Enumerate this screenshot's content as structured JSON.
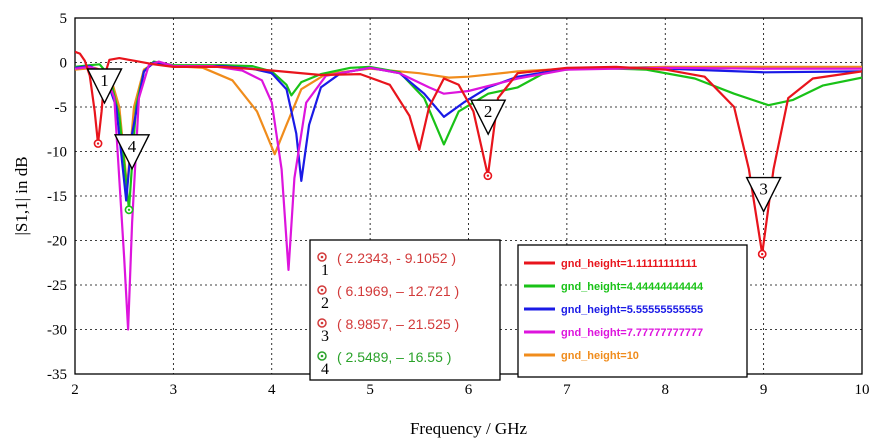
{
  "chart_data": {
    "type": "line",
    "title": "",
    "xlabel": "Frequency / GHz",
    "ylabel": "|S1,1| in dB",
    "xlim": [
      2,
      10
    ],
    "ylim": [
      -35,
      5
    ],
    "x_ticks": [
      "2",
      "3",
      "4",
      "5",
      "6",
      "7",
      "8",
      "9",
      "10"
    ],
    "y_ticks": [
      "5",
      "0",
      "-5",
      "-10",
      "-15",
      "-20",
      "-25",
      "-30",
      "-35"
    ],
    "grid": true,
    "legend_position": "bottom-right",
    "series": [
      {
        "name": "gnd_height=1.11111111111",
        "color": "#e8141c",
        "points": [
          [
            2,
            1.2
          ],
          [
            2.05,
            1.0
          ],
          [
            2.1,
            0.2
          ],
          [
            2.15,
            -1.5
          ],
          [
            2.2,
            -5.5
          ],
          [
            2.2343,
            -9.1
          ],
          [
            2.27,
            -5.5
          ],
          [
            2.3,
            -1.5
          ],
          [
            2.35,
            0.3
          ],
          [
            2.45,
            0.5
          ],
          [
            2.6,
            0.2
          ],
          [
            2.8,
            -0.2
          ],
          [
            3.0,
            -0.5
          ],
          [
            3.5,
            -0.5
          ],
          [
            4.0,
            -0.9
          ],
          [
            4.5,
            -1.4
          ],
          [
            4.9,
            -1.3
          ],
          [
            5.2,
            -2.5
          ],
          [
            5.4,
            -6.0
          ],
          [
            5.5,
            -9.8
          ],
          [
            5.6,
            -5.0
          ],
          [
            5.75,
            -1.8
          ],
          [
            5.9,
            -2.5
          ],
          [
            6.05,
            -5.5
          ],
          [
            6.1969,
            -12.7
          ],
          [
            6.3,
            -4.0
          ],
          [
            6.5,
            -1.2
          ],
          [
            7.0,
            -0.6
          ],
          [
            7.5,
            -0.5
          ],
          [
            8.0,
            -0.8
          ],
          [
            8.4,
            -1.6
          ],
          [
            8.7,
            -5.0
          ],
          [
            8.85,
            -12.0
          ],
          [
            8.9857,
            -21.5
          ],
          [
            9.1,
            -12.0
          ],
          [
            9.25,
            -4.0
          ],
          [
            9.5,
            -1.8
          ],
          [
            10.0,
            -1.0
          ]
        ]
      },
      {
        "name": "gnd_height=4.44444444444",
        "color": "#19c217",
        "points": [
          [
            2,
            -0.5
          ],
          [
            2.15,
            -0.3
          ],
          [
            2.25,
            -0.2
          ],
          [
            2.35,
            -1.5
          ],
          [
            2.45,
            -6.0
          ],
          [
            2.5489,
            -16.5
          ],
          [
            2.62,
            -5.0
          ],
          [
            2.7,
            -1.0
          ],
          [
            2.8,
            0.1
          ],
          [
            3.0,
            -0.3
          ],
          [
            3.5,
            -0.3
          ],
          [
            3.8,
            -0.4
          ],
          [
            4.0,
            -1.0
          ],
          [
            4.15,
            -2.5
          ],
          [
            4.2,
            -3.7
          ],
          [
            4.3,
            -2.2
          ],
          [
            4.5,
            -1.3
          ],
          [
            4.8,
            -0.6
          ],
          [
            5.0,
            -0.5
          ],
          [
            5.3,
            -1.1
          ],
          [
            5.55,
            -4.0
          ],
          [
            5.75,
            -9.2
          ],
          [
            5.9,
            -5.5
          ],
          [
            6.2,
            -3.5
          ],
          [
            6.5,
            -2.8
          ],
          [
            6.8,
            -1.0
          ],
          [
            7.2,
            -0.6
          ],
          [
            7.8,
            -0.8
          ],
          [
            8.3,
            -1.8
          ],
          [
            8.7,
            -3.5
          ],
          [
            9.05,
            -4.8
          ],
          [
            9.3,
            -4.2
          ],
          [
            9.6,
            -2.6
          ],
          [
            10.0,
            -1.7
          ]
        ]
      },
      {
        "name": "gnd_height=5.55555555555",
        "color": "#1a1ae6",
        "points": [
          [
            2,
            -0.6
          ],
          [
            2.15,
            -0.4
          ],
          [
            2.3,
            -1.2
          ],
          [
            2.42,
            -5.0
          ],
          [
            2.52,
            -15.5
          ],
          [
            2.58,
            -8.0
          ],
          [
            2.7,
            -1.0
          ],
          [
            2.8,
            0.0
          ],
          [
            3.0,
            -0.4
          ],
          [
            3.5,
            -0.4
          ],
          [
            3.8,
            -0.7
          ],
          [
            4.0,
            -1.2
          ],
          [
            4.15,
            -3.0
          ],
          [
            4.25,
            -8.0
          ],
          [
            4.3,
            -13.3
          ],
          [
            4.38,
            -7.0
          ],
          [
            4.5,
            -2.8
          ],
          [
            4.7,
            -1.2
          ],
          [
            5.0,
            -0.6
          ],
          [
            5.3,
            -1.2
          ],
          [
            5.55,
            -3.5
          ],
          [
            5.75,
            -6.1
          ],
          [
            5.95,
            -4.5
          ],
          [
            6.2,
            -2.8
          ],
          [
            6.5,
            -1.6
          ],
          [
            7.0,
            -0.7
          ],
          [
            7.8,
            -0.6
          ],
          [
            8.5,
            -0.9
          ],
          [
            9.0,
            -1.1
          ],
          [
            10.0,
            -1.0
          ]
        ]
      },
      {
        "name": "gnd_height=7.77777777777",
        "color": "#dd14dd",
        "points": [
          [
            2,
            -0.7
          ],
          [
            2.15,
            -0.5
          ],
          [
            2.3,
            -1.0
          ],
          [
            2.4,
            -4.0
          ],
          [
            2.5,
            -22.0
          ],
          [
            2.54,
            -30.0
          ],
          [
            2.58,
            -18.0
          ],
          [
            2.65,
            -4.0
          ],
          [
            2.75,
            -0.3
          ],
          [
            2.85,
            0.1
          ],
          [
            3.0,
            -0.4
          ],
          [
            3.4,
            -0.4
          ],
          [
            3.7,
            -0.9
          ],
          [
            3.9,
            -2.0
          ],
          [
            4.0,
            -4.5
          ],
          [
            4.1,
            -12.0
          ],
          [
            4.17,
            -23.3
          ],
          [
            4.23,
            -13.0
          ],
          [
            4.35,
            -4.5
          ],
          [
            4.55,
            -1.5
          ],
          [
            5.0,
            -0.6
          ],
          [
            5.3,
            -1.2
          ],
          [
            5.6,
            -2.8
          ],
          [
            5.75,
            -3.5
          ],
          [
            6.0,
            -3.2
          ],
          [
            6.5,
            -1.8
          ],
          [
            7.0,
            -0.8
          ],
          [
            8.0,
            -0.6
          ],
          [
            9.0,
            -0.7
          ],
          [
            10.0,
            -0.7
          ]
        ]
      },
      {
        "name": "gnd_height=10",
        "color": "#f08c1c",
        "points": [
          [
            2,
            -0.8
          ],
          [
            2.2,
            -0.6
          ],
          [
            2.35,
            -1.2
          ],
          [
            2.45,
            -5.0
          ],
          [
            2.53,
            -14.0
          ],
          [
            2.6,
            -5.0
          ],
          [
            2.7,
            -0.8
          ],
          [
            2.8,
            -0.1
          ],
          [
            3.0,
            -0.4
          ],
          [
            3.3,
            -0.6
          ],
          [
            3.6,
            -2.0
          ],
          [
            3.85,
            -5.5
          ],
          [
            4.03,
            -10.3
          ],
          [
            4.15,
            -7.0
          ],
          [
            4.3,
            -3.0
          ],
          [
            4.55,
            -1.3
          ],
          [
            5.0,
            -0.7
          ],
          [
            5.5,
            -1.2
          ],
          [
            5.8,
            -1.7
          ],
          [
            6.0,
            -1.6
          ],
          [
            6.5,
            -1.0
          ],
          [
            7.0,
            -0.7
          ],
          [
            8.0,
            -0.5
          ],
          [
            9.0,
            -0.5
          ],
          [
            10.0,
            -0.5
          ]
        ]
      }
    ],
    "markers": [
      {
        "id": "1",
        "x": 2.2343,
        "y": -9.1052,
        "label": "( 2.2343, - 9.1052 )",
        "color": "#e8141c",
        "box_color": "#d23a3a",
        "tri_at": [
          2.3,
          -4.1
        ]
      },
      {
        "id": "2",
        "x": 6.1969,
        "y": -12.721,
        "label": "( 6.1969, – 12.721 )",
        "color": "#e8141c",
        "box_color": "#d23a3a",
        "tri_at": [
          6.2,
          -7.6
        ]
      },
      {
        "id": "3",
        "x": 8.9857,
        "y": -21.525,
        "label": "( 8.9857, – 21.525 )",
        "color": "#e8141c",
        "box_color": "#d23a3a",
        "tri_at": [
          9.0,
          -16.3
        ]
      },
      {
        "id": "4",
        "x": 2.5489,
        "y": -16.55,
        "label": "( 2.5489, – 16.55 )",
        "color": "#19c217",
        "box_color": "#2aa22a",
        "tri_at": [
          2.58,
          -11.5
        ]
      }
    ]
  }
}
